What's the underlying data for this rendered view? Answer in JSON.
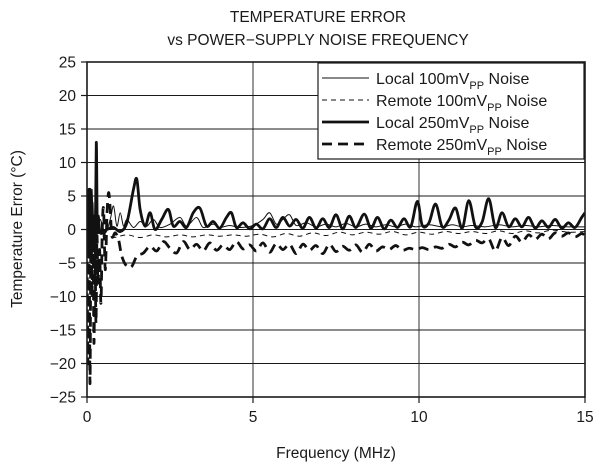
{
  "chart_data": {
    "type": "line",
    "title": [
      "TEMPERATURE ERROR",
      "vs POWER−SUPPLY NOISE FREQUENCY"
    ],
    "xlabel": "Frequency (MHz)",
    "ylabel": "Temperature Error (°C)",
    "xlim": [
      0,
      15
    ],
    "ylim": [
      -25,
      25
    ],
    "x_ticks": [
      0,
      5,
      10,
      15
    ],
    "y_ticks": [
      -25,
      -20,
      -15,
      -10,
      -5,
      0,
      5,
      10,
      15,
      20,
      25
    ],
    "x_tick_labels": [
      "0",
      "5",
      "10",
      "15"
    ],
    "y_tick_labels": [
      "−25",
      "−20",
      "−15",
      "−10",
      "−5",
      "0",
      "5",
      "10",
      "15",
      "20",
      "25"
    ],
    "grid": true,
    "legend_position": "top-right",
    "legend": [
      {
        "pre": "Local 100mV",
        "sub": "PP",
        "post": " Noise"
      },
      {
        "pre": "Remote 100mV",
        "sub": "PP",
        "post": " Noise"
      },
      {
        "pre": "Local 250mV",
        "sub": "PP",
        "post": " Noise"
      },
      {
        "pre": "Remote 250mV",
        "sub": "PP",
        "post": " Noise"
      }
    ],
    "series": [
      {
        "name": "Local 100mVPP Noise",
        "style": "thin-solid",
        "points": [
          [
            0.0,
            0
          ],
          [
            0.05,
            5
          ],
          [
            0.1,
            -3
          ],
          [
            0.15,
            6
          ],
          [
            0.2,
            -2
          ],
          [
            0.25,
            4
          ],
          [
            0.3,
            0
          ],
          [
            0.4,
            1.5
          ],
          [
            0.55,
            -0.5
          ],
          [
            0.7,
            1.5
          ],
          [
            0.8,
            3.5
          ],
          [
            0.9,
            0.5
          ],
          [
            1.0,
            2.5
          ],
          [
            1.1,
            0.5
          ],
          [
            1.2,
            1.5
          ],
          [
            1.4,
            0.3
          ],
          [
            1.6,
            1.2
          ],
          [
            1.8,
            0.5
          ],
          [
            2.0,
            1.5
          ],
          [
            2.2,
            0.3
          ],
          [
            2.5,
            0.8
          ],
          [
            2.8,
            1.8
          ],
          [
            3.0,
            0.5
          ],
          [
            3.3,
            1.8
          ],
          [
            3.5,
            0.3
          ],
          [
            3.8,
            0.8
          ],
          [
            4.0,
            0.3
          ],
          [
            4.3,
            0.6
          ],
          [
            4.6,
            0.3
          ],
          [
            5.0,
            0.6
          ],
          [
            5.3,
            1.5
          ],
          [
            5.5,
            2.5
          ],
          [
            5.7,
            0.8
          ],
          [
            5.9,
            1.5
          ],
          [
            6.1,
            2.2
          ],
          [
            6.3,
            0.6
          ],
          [
            6.6,
            1.0
          ],
          [
            6.9,
            0.4
          ],
          [
            7.2,
            0.8
          ],
          [
            7.5,
            0.4
          ],
          [
            7.8,
            0.9
          ],
          [
            8.1,
            0.4
          ],
          [
            8.4,
            0.8
          ],
          [
            8.7,
            0.4
          ],
          [
            9.0,
            0.7
          ],
          [
            9.3,
            0.4
          ],
          [
            9.6,
            0.8
          ],
          [
            9.9,
            0.4
          ],
          [
            10.3,
            0.7
          ],
          [
            10.7,
            0.4
          ],
          [
            11.0,
            0.7
          ],
          [
            11.3,
            0.4
          ],
          [
            11.6,
            0.6
          ],
          [
            12.0,
            0.4
          ],
          [
            12.4,
            0.7
          ],
          [
            12.8,
            0.4
          ],
          [
            13.2,
            0.6
          ],
          [
            13.6,
            0.4
          ],
          [
            14.0,
            0.6
          ],
          [
            14.5,
            0.4
          ],
          [
            15.0,
            0.4
          ]
        ]
      },
      {
        "name": "Remote 100mVPP Noise",
        "style": "thin-dash",
        "points": [
          [
            0.0,
            0
          ],
          [
            0.05,
            -2
          ],
          [
            0.1,
            1
          ],
          [
            0.15,
            -3
          ],
          [
            0.2,
            0
          ],
          [
            0.25,
            -1
          ],
          [
            0.3,
            -0.5
          ],
          [
            0.5,
            -1
          ],
          [
            0.8,
            -1.2
          ],
          [
            1.2,
            -0.8
          ],
          [
            1.6,
            -1.2
          ],
          [
            2.0,
            -0.8
          ],
          [
            2.4,
            -1.1
          ],
          [
            2.8,
            -0.8
          ],
          [
            3.2,
            -1.1
          ],
          [
            3.6,
            -0.8
          ],
          [
            4.0,
            -1.0
          ],
          [
            4.4,
            -0.8
          ],
          [
            4.8,
            -1.0
          ],
          [
            5.2,
            -0.7
          ],
          [
            5.6,
            -1.1
          ],
          [
            6.0,
            -0.6
          ],
          [
            6.4,
            -1.0
          ],
          [
            6.8,
            -0.5
          ],
          [
            7.2,
            -0.9
          ],
          [
            7.6,
            -0.4
          ],
          [
            8.0,
            -0.8
          ],
          [
            8.4,
            -0.4
          ],
          [
            8.8,
            -0.7
          ],
          [
            9.2,
            -0.3
          ],
          [
            9.6,
            -0.8
          ],
          [
            10.0,
            -0.4
          ],
          [
            10.4,
            -0.7
          ],
          [
            10.8,
            -0.3
          ],
          [
            11.2,
            -0.6
          ],
          [
            11.6,
            -0.3
          ],
          [
            12.0,
            -0.6
          ],
          [
            12.4,
            -0.2
          ],
          [
            12.8,
            -0.6
          ],
          [
            13.2,
            -0.2
          ],
          [
            13.6,
            -0.5
          ],
          [
            14.0,
            -0.1
          ],
          [
            14.5,
            -0.4
          ],
          [
            15.0,
            -0.3
          ]
        ]
      },
      {
        "name": "Local 250mVPP Noise",
        "style": "thick-solid",
        "points": [
          [
            0.0,
            0
          ],
          [
            0.03,
            5
          ],
          [
            0.06,
            -4
          ],
          [
            0.09,
            6
          ],
          [
            0.12,
            -3
          ],
          [
            0.15,
            4
          ],
          [
            0.18,
            -1
          ],
          [
            0.22,
            2
          ],
          [
            0.25,
            -2
          ],
          [
            0.28,
            13
          ],
          [
            0.31,
            0
          ],
          [
            0.34,
            2
          ],
          [
            0.4,
            -0.5
          ],
          [
            0.6,
            0
          ],
          [
            0.8,
            0.3
          ],
          [
            1.0,
            -0.3
          ],
          [
            1.2,
            1
          ],
          [
            1.4,
            6
          ],
          [
            1.5,
            7.5
          ],
          [
            1.6,
            3
          ],
          [
            1.75,
            0.5
          ],
          [
            1.9,
            2.5
          ],
          [
            2.05,
            0
          ],
          [
            2.25,
            1.5
          ],
          [
            2.45,
            3
          ],
          [
            2.6,
            0.5
          ],
          [
            2.8,
            1.2
          ],
          [
            3.0,
            0.3
          ],
          [
            3.2,
            2.5
          ],
          [
            3.4,
            3.2
          ],
          [
            3.6,
            0.5
          ],
          [
            3.8,
            1.2
          ],
          [
            4.0,
            0.2
          ],
          [
            4.2,
            1.8
          ],
          [
            4.35,
            2.5
          ],
          [
            4.5,
            0.3
          ],
          [
            4.7,
            1.0
          ],
          [
            4.9,
            0.1
          ],
          [
            5.1,
            0.8
          ],
          [
            5.3,
            0.1
          ],
          [
            5.5,
            1.6
          ],
          [
            5.7,
            0.3
          ],
          [
            5.9,
            1.8
          ],
          [
            6.1,
            0.5
          ],
          [
            6.3,
            1.5
          ],
          [
            6.5,
            0.2
          ],
          [
            6.7,
            1.8
          ],
          [
            6.9,
            0.2
          ],
          [
            7.1,
            1.6
          ],
          [
            7.3,
            0.3
          ],
          [
            7.5,
            2.2
          ],
          [
            7.7,
            0.1
          ],
          [
            7.9,
            2.0
          ],
          [
            8.1,
            0.3
          ],
          [
            8.35,
            2.3
          ],
          [
            8.55,
            0.2
          ],
          [
            8.75,
            1.8
          ],
          [
            8.95,
            0.1
          ],
          [
            9.15,
            1.4
          ],
          [
            9.35,
            0.3
          ],
          [
            9.55,
            1.6
          ],
          [
            9.75,
            0.4
          ],
          [
            9.95,
            4.2
          ],
          [
            10.1,
            0.6
          ],
          [
            10.3,
            1.0
          ],
          [
            10.5,
            3.8
          ],
          [
            10.7,
            0.4
          ],
          [
            10.9,
            1.4
          ],
          [
            11.1,
            3.2
          ],
          [
            11.3,
            0.2
          ],
          [
            11.5,
            4.3
          ],
          [
            11.7,
            0.4
          ],
          [
            11.9,
            1.1
          ],
          [
            12.1,
            4.6
          ],
          [
            12.3,
            0.3
          ],
          [
            12.5,
            2.5
          ],
          [
            12.7,
            0.4
          ],
          [
            12.9,
            1.6
          ],
          [
            13.1,
            0.4
          ],
          [
            13.3,
            1.8
          ],
          [
            13.5,
            0.2
          ],
          [
            13.7,
            1.3
          ],
          [
            13.9,
            0.3
          ],
          [
            14.1,
            1.5
          ],
          [
            14.3,
            0.2
          ],
          [
            14.5,
            1.0
          ],
          [
            14.7,
            0.3
          ],
          [
            14.9,
            1.8
          ],
          [
            15.0,
            2.5
          ]
        ]
      },
      {
        "name": "Remote 250mVPP Noise",
        "style": "thick-dash",
        "points": [
          [
            0.0,
            0
          ],
          [
            0.03,
            -20
          ],
          [
            0.06,
            6
          ],
          [
            0.09,
            -23
          ],
          [
            0.12,
            3
          ],
          [
            0.15,
            -10
          ],
          [
            0.18,
            0
          ],
          [
            0.21,
            -17
          ],
          [
            0.24,
            -2
          ],
          [
            0.27,
            -14
          ],
          [
            0.3,
            -1
          ],
          [
            0.33,
            -8
          ],
          [
            0.38,
            -3
          ],
          [
            0.42,
            -11
          ],
          [
            0.46,
            0
          ],
          [
            0.5,
            3
          ],
          [
            0.55,
            -6
          ],
          [
            0.6,
            2
          ],
          [
            0.65,
            5.5
          ],
          [
            0.7,
            3
          ],
          [
            0.75,
            -1
          ],
          [
            0.85,
            -0.5
          ],
          [
            0.95,
            -1.5
          ],
          [
            1.05,
            -4
          ],
          [
            1.2,
            -5.5
          ],
          [
            1.35,
            -5.5
          ],
          [
            1.5,
            -4
          ],
          [
            1.7,
            -3.5
          ],
          [
            1.9,
            -2.5
          ],
          [
            2.1,
            -3.2
          ],
          [
            2.3,
            -1.8
          ],
          [
            2.5,
            -2.8
          ],
          [
            2.7,
            -3.5
          ],
          [
            2.9,
            -1.8
          ],
          [
            3.1,
            -3.0
          ],
          [
            3.3,
            -2.2
          ],
          [
            3.5,
            -3.2
          ],
          [
            3.7,
            -2.0
          ],
          [
            3.9,
            -3.1
          ],
          [
            4.1,
            -2.3
          ],
          [
            4.3,
            -3.0
          ],
          [
            4.5,
            -1.8
          ],
          [
            4.7,
            -2.9
          ],
          [
            4.9,
            -2.3
          ],
          [
            5.1,
            -3.2
          ],
          [
            5.3,
            -2.0
          ],
          [
            5.5,
            -3.4
          ],
          [
            5.7,
            -2.1
          ],
          [
            5.9,
            -3.0
          ],
          [
            6.1,
            -2.2
          ],
          [
            6.3,
            -3.6
          ],
          [
            6.5,
            -2.2
          ],
          [
            6.7,
            -3.1
          ],
          [
            6.9,
            -2.4
          ],
          [
            7.1,
            -3.6
          ],
          [
            7.3,
            -2.2
          ],
          [
            7.5,
            -3.3
          ],
          [
            7.7,
            -2.5
          ],
          [
            7.9,
            -3.1
          ],
          [
            8.1,
            -2.3
          ],
          [
            8.3,
            -3.4
          ],
          [
            8.5,
            -2.2
          ],
          [
            8.7,
            -3.2
          ],
          [
            8.9,
            -2.6
          ],
          [
            9.1,
            -3.0
          ],
          [
            9.3,
            -2.4
          ],
          [
            9.5,
            -3.1
          ],
          [
            9.7,
            -2.8
          ],
          [
            9.9,
            -3.0
          ],
          [
            10.1,
            -2.7
          ],
          [
            10.3,
            -3.0
          ],
          [
            10.5,
            -2.6
          ],
          [
            10.7,
            -2.8
          ],
          [
            10.9,
            -2.2
          ],
          [
            11.1,
            -2.6
          ],
          [
            11.3,
            -1.9
          ],
          [
            11.5,
            -2.3
          ],
          [
            11.7,
            -1.6
          ],
          [
            11.9,
            -2.0
          ],
          [
            12.1,
            -1.4
          ],
          [
            12.3,
            -3.2
          ],
          [
            12.5,
            -1.2
          ],
          [
            12.7,
            -2.4
          ],
          [
            12.9,
            -1.0
          ],
          [
            13.1,
            -1.9
          ],
          [
            13.3,
            -0.8
          ],
          [
            13.5,
            -1.5
          ],
          [
            13.7,
            -0.7
          ],
          [
            13.9,
            -1.4
          ],
          [
            14.1,
            -0.5
          ],
          [
            14.3,
            -1.0
          ],
          [
            14.5,
            -0.5
          ],
          [
            14.7,
            -1.1
          ],
          [
            14.9,
            -0.6
          ],
          [
            15.0,
            -1.0
          ]
        ]
      }
    ]
  }
}
